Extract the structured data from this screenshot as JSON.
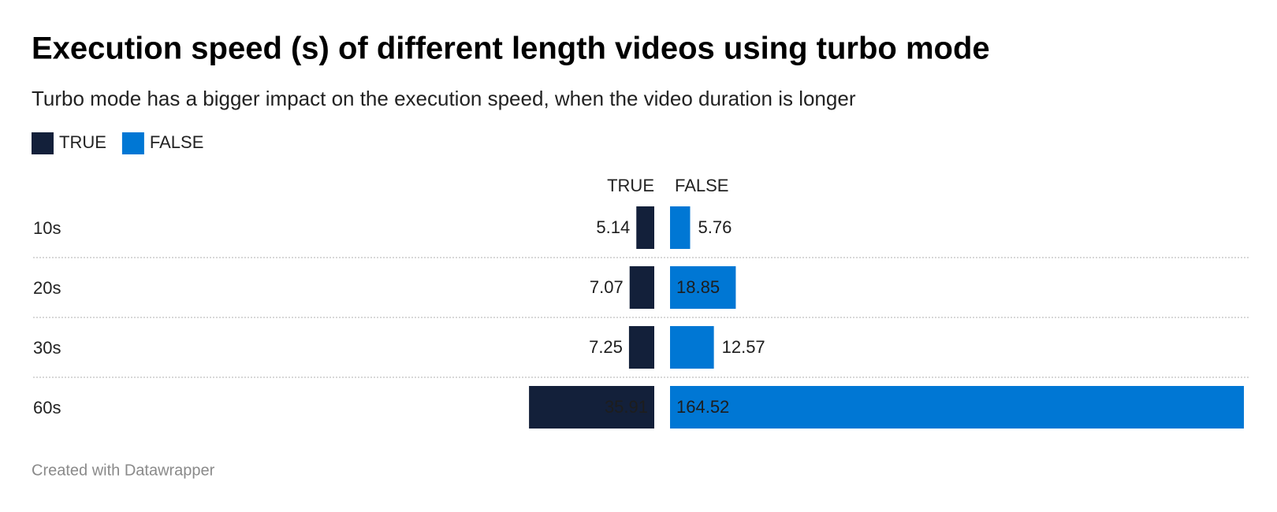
{
  "chart_data": {
    "type": "split-bar",
    "title": "Execution speed (s) of different length videos using turbo mode",
    "subtitle": "Turbo mode has a bigger impact on the execution speed, when the video duration is longer",
    "categories": [
      "10s",
      "20s",
      "30s",
      "60s"
    ],
    "series": [
      {
        "name": "TRUE",
        "color": "#13203a",
        "values": [
          5.14,
          7.07,
          7.25,
          35.91
        ]
      },
      {
        "name": "FALSE",
        "color": "#0077d4",
        "values": [
          5.76,
          18.85,
          12.57,
          164.52
        ]
      }
    ],
    "footer": "Created with Datawrapper"
  }
}
